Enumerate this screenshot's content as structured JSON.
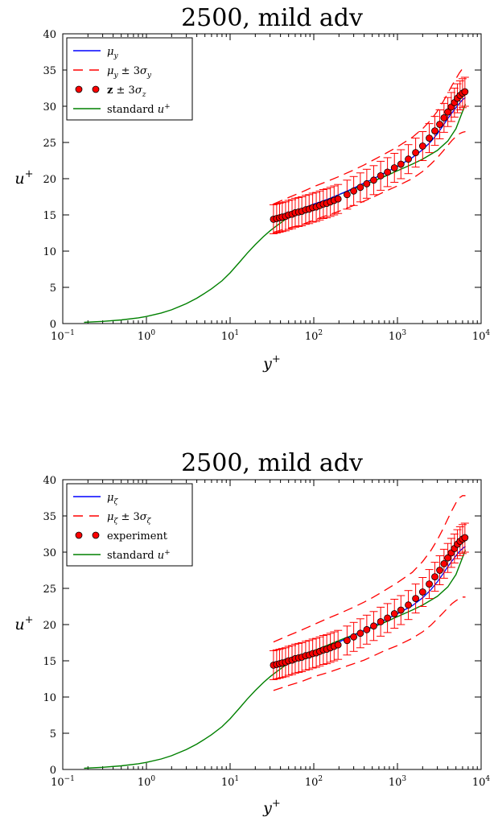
{
  "chart_data": [
    {
      "type": "line",
      "title": "2500, mild adv",
      "xlabel": "y+",
      "ylabel": "u+",
      "xscale": "log",
      "xlim": [
        0.1,
        10000
      ],
      "ylim": [
        0,
        40
      ],
      "x_tick_labels": [
        "10−1",
        "100",
        "101",
        "102",
        "103",
        "104"
      ],
      "y_tick_labels": [
        "0",
        "5",
        "10",
        "15",
        "20",
        "25",
        "30",
        "35",
        "40"
      ],
      "grid": false,
      "legend_placement": "top-left",
      "legend": [
        {
          "label": "μy",
          "style": "solid",
          "color": "#0000ff"
        },
        {
          "label": "μy ± 3σy",
          "style": "dashed",
          "color": "#ff0000"
        },
        {
          "label": "z ± 3σz",
          "style": "markers",
          "color": "#ff0000"
        },
        {
          "label": "standard u+",
          "style": "solid",
          "color": "#008000"
        }
      ],
      "series": [
        {
          "name": "μy",
          "x": [
            33,
            50,
            70,
            100,
            150,
            200,
            300,
            400,
            500,
            700,
            1000,
            1500,
            2000,
            2500,
            3000,
            3500,
            4000,
            4500,
            5000,
            5500,
            6000,
            6500
          ],
          "y": [
            14.4,
            15.2,
            15.8,
            16.5,
            17.2,
            17.8,
            18.7,
            19.4,
            19.9,
            20.8,
            21.7,
            22.9,
            24.0,
            25.1,
            26.2,
            27.3,
            28.3,
            29.1,
            29.8,
            30.4,
            30.9,
            31.2
          ]
        },
        {
          "name": "μy + 3σy",
          "x": [
            33,
            50,
            70,
            100,
            150,
            200,
            300,
            400,
            500,
            700,
            1000,
            1500,
            2000,
            2500,
            3000,
            3500,
            4000,
            4500,
            5000,
            5500,
            6000,
            6500
          ],
          "y": [
            16.5,
            17.4,
            18.1,
            18.9,
            19.7,
            20.3,
            21.2,
            21.9,
            22.5,
            23.4,
            24.4,
            25.7,
            26.9,
            28.1,
            29.3,
            30.6,
            31.8,
            32.9,
            33.8,
            34.6,
            35.2,
            35.3
          ]
        },
        {
          "name": "μy − 3σy",
          "x": [
            33,
            50,
            70,
            100,
            150,
            200,
            300,
            400,
            500,
            700,
            1000,
            1500,
            2000,
            2500,
            3000,
            3500,
            4000,
            4500,
            5000,
            5500,
            6000,
            6500
          ],
          "y": [
            12.6,
            13.2,
            13.6,
            14.3,
            15.0,
            15.5,
            16.3,
            16.9,
            17.4,
            18.2,
            19.0,
            20.0,
            21.0,
            22.0,
            22.9,
            23.8,
            24.6,
            25.3,
            25.8,
            26.2,
            26.4,
            26.5
          ]
        },
        {
          "name": "z ± 3σz",
          "x": [
            33,
            36,
            39,
            42,
            46,
            50,
            55,
            60,
            66,
            72,
            80,
            88,
            97,
            107,
            118,
            130,
            143,
            158,
            175,
            195,
            250,
            300,
            360,
            430,
            520,
            630,
            760,
            920,
            1100,
            1350,
            1650,
            2000,
            2400,
            2800,
            3200,
            3600,
            4000,
            4400,
            4800,
            5200,
            5600,
            6000,
            6400
          ],
          "y": [
            14.4,
            14.5,
            14.6,
            14.7,
            14.8,
            15.0,
            15.1,
            15.3,
            15.4,
            15.5,
            15.7,
            15.8,
            16.0,
            16.1,
            16.3,
            16.5,
            16.6,
            16.8,
            17.0,
            17.2,
            17.8,
            18.3,
            18.8,
            19.3,
            19.8,
            20.4,
            20.9,
            21.5,
            22.0,
            22.7,
            23.6,
            24.5,
            25.6,
            26.6,
            27.5,
            28.4,
            29.2,
            29.9,
            30.5,
            31.1,
            31.5,
            31.8,
            32.0
          ],
          "err": 2.0
        },
        {
          "name": "standard u+",
          "x": [
            0.18,
            0.3,
            0.5,
            0.8,
            1,
            1.5,
            2,
            3,
            4,
            5,
            6,
            8,
            10,
            13,
            16,
            20,
            25,
            30,
            35,
            50,
            70,
            100,
            150,
            200,
            300,
            500,
            700,
            1000,
            1500,
            2000,
            3000,
            4000,
            5000,
            6500
          ],
          "y": [
            0.18,
            0.3,
            0.5,
            0.79,
            0.98,
            1.45,
            1.9,
            2.75,
            3.5,
            4.2,
            4.8,
            5.9,
            7.0,
            8.5,
            9.7,
            10.9,
            12.0,
            12.8,
            13.4,
            14.7,
            15.6,
            16.4,
            17.2,
            17.8,
            18.6,
            19.6,
            20.3,
            21.1,
            22.0,
            22.7,
            23.9,
            25.2,
            26.9,
            30.3
          ]
        }
      ]
    },
    {
      "type": "line",
      "title": "2500, mild adv",
      "xlabel": "y+",
      "ylabel": "u+",
      "xscale": "log",
      "xlim": [
        0.1,
        10000
      ],
      "ylim": [
        0,
        40
      ],
      "x_tick_labels": [
        "10−1",
        "100",
        "101",
        "102",
        "103",
        "104"
      ],
      "y_tick_labels": [
        "0",
        "5",
        "10",
        "15",
        "20",
        "25",
        "30",
        "35",
        "40"
      ],
      "grid": false,
      "legend_placement": "top-left",
      "legend": [
        {
          "label": "μζ",
          "style": "solid",
          "color": "#0000ff"
        },
        {
          "label": "μζ ± 3σζ",
          "style": "dashed",
          "color": "#ff0000"
        },
        {
          "label": "experiment",
          "style": "markers",
          "color": "#ff0000"
        },
        {
          "label": "standard u+",
          "style": "solid",
          "color": "#008000"
        }
      ],
      "series": [
        {
          "name": "μζ",
          "x": [
            33,
            50,
            70,
            100,
            150,
            200,
            300,
            400,
            500,
            700,
            1000,
            1500,
            2000,
            2500,
            3000,
            3500,
            4000,
            4500,
            5000,
            5500,
            6000,
            6500
          ],
          "y": [
            14.3,
            15.0,
            15.6,
            16.3,
            17.0,
            17.6,
            18.5,
            19.2,
            19.7,
            20.6,
            21.5,
            22.6,
            23.7,
            24.8,
            25.9,
            27.0,
            28.0,
            28.8,
            29.5,
            30.1,
            30.5,
            30.8
          ]
        },
        {
          "name": "μζ + 3σζ",
          "x": [
            33,
            50,
            70,
            100,
            150,
            200,
            300,
            400,
            500,
            700,
            1000,
            1500,
            2000,
            2500,
            3000,
            3500,
            4000,
            4500,
            5000,
            5500,
            6000,
            6500
          ],
          "y": [
            17.6,
            18.5,
            19.2,
            20.0,
            20.9,
            21.5,
            22.4,
            23.1,
            23.7,
            24.7,
            25.8,
            27.2,
            28.7,
            30.2,
            31.7,
            33.2,
            34.6,
            35.8,
            36.8,
            37.5,
            37.8,
            37.8
          ]
        },
        {
          "name": "μζ − 3σζ",
          "x": [
            33,
            50,
            70,
            100,
            150,
            200,
            300,
            400,
            500,
            700,
            1000,
            1500,
            2000,
            2500,
            3000,
            3500,
            4000,
            4500,
            5000,
            5500,
            6000,
            6500
          ],
          "y": [
            10.9,
            11.6,
            12.1,
            12.8,
            13.4,
            13.9,
            14.6,
            15.1,
            15.6,
            16.4,
            17.1,
            18.1,
            19.0,
            19.9,
            20.8,
            21.6,
            22.3,
            22.9,
            23.3,
            23.6,
            23.8,
            23.8
          ]
        },
        {
          "name": "experiment",
          "x": [
            33,
            36,
            39,
            42,
            46,
            50,
            55,
            60,
            66,
            72,
            80,
            88,
            97,
            107,
            118,
            130,
            143,
            158,
            175,
            195,
            250,
            300,
            360,
            430,
            520,
            630,
            760,
            920,
            1100,
            1350,
            1650,
            2000,
            2400,
            2800,
            3200,
            3600,
            4000,
            4400,
            4800,
            5200,
            5600,
            6000,
            6400
          ],
          "y": [
            14.4,
            14.5,
            14.6,
            14.7,
            14.8,
            15.0,
            15.1,
            15.3,
            15.4,
            15.5,
            15.7,
            15.8,
            16.0,
            16.1,
            16.3,
            16.5,
            16.6,
            16.8,
            17.0,
            17.2,
            17.8,
            18.3,
            18.8,
            19.3,
            19.8,
            20.4,
            20.9,
            21.5,
            22.0,
            22.7,
            23.6,
            24.5,
            25.6,
            26.6,
            27.5,
            28.4,
            29.2,
            29.9,
            30.5,
            31.1,
            31.5,
            31.8,
            32.0
          ],
          "err": 2.0
        },
        {
          "name": "standard u+",
          "x": [
            0.18,
            0.3,
            0.5,
            0.8,
            1,
            1.5,
            2,
            3,
            4,
            5,
            6,
            8,
            10,
            13,
            16,
            20,
            25,
            30,
            35,
            50,
            70,
            100,
            150,
            200,
            300,
            500,
            700,
            1000,
            1500,
            2000,
            3000,
            4000,
            5000,
            6500
          ],
          "y": [
            0.18,
            0.3,
            0.5,
            0.79,
            0.98,
            1.45,
            1.9,
            2.75,
            3.5,
            4.2,
            4.8,
            5.9,
            7.0,
            8.5,
            9.7,
            10.9,
            12.0,
            12.8,
            13.4,
            14.7,
            15.6,
            16.4,
            17.2,
            17.8,
            18.6,
            19.6,
            20.3,
            21.1,
            22.0,
            22.7,
            23.9,
            25.2,
            26.9,
            30.3
          ]
        }
      ]
    }
  ]
}
